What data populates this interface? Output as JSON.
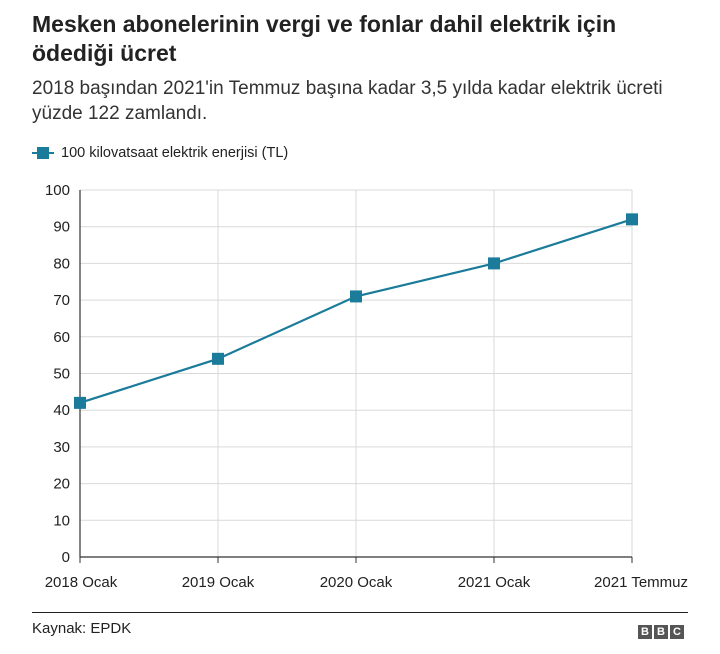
{
  "header": {
    "title": "Mesken abonelerinin vergi ve fonlar dahil elektrik için ödediği ücret",
    "subtitle": "2018 başından 2021'in Temmuz başına kadar 3,5 yılda kadar elektrik ücreti yüzde 122 zamlandı."
  },
  "colors": {
    "series": "#1b7b9a",
    "grid": "#d9d9d9",
    "axis": "#333333"
  },
  "chart_data": {
    "type": "line",
    "title": "Mesken abonelerinin vergi ve fonlar dahil elektrik için ödediği ücret",
    "subtitle": "2018 başından 2021'in Temmuz başına kadar 3,5 yılda kadar elektrik ücreti yüzde 122 zamlandı.",
    "xlabel": "",
    "ylabel": "",
    "categories": [
      "2018 Ocak",
      "2019 Ocak",
      "2020 Ocak",
      "2021 Ocak",
      "2021 Temmuz"
    ],
    "series": [
      {
        "name": "100 kilovatsaat elektrik enerjisi (TL)",
        "values": [
          42,
          54,
          71,
          80,
          92
        ]
      }
    ],
    "ylim": [
      0,
      100
    ],
    "yticks": [
      "0",
      "10",
      "20",
      "30",
      "40",
      "50",
      "60",
      "70",
      "80",
      "90",
      "100"
    ],
    "grid": true,
    "legend": "top-left",
    "marker": "square"
  },
  "footer": {
    "source": "Kaynak: EPDK",
    "logo": "BBC"
  }
}
